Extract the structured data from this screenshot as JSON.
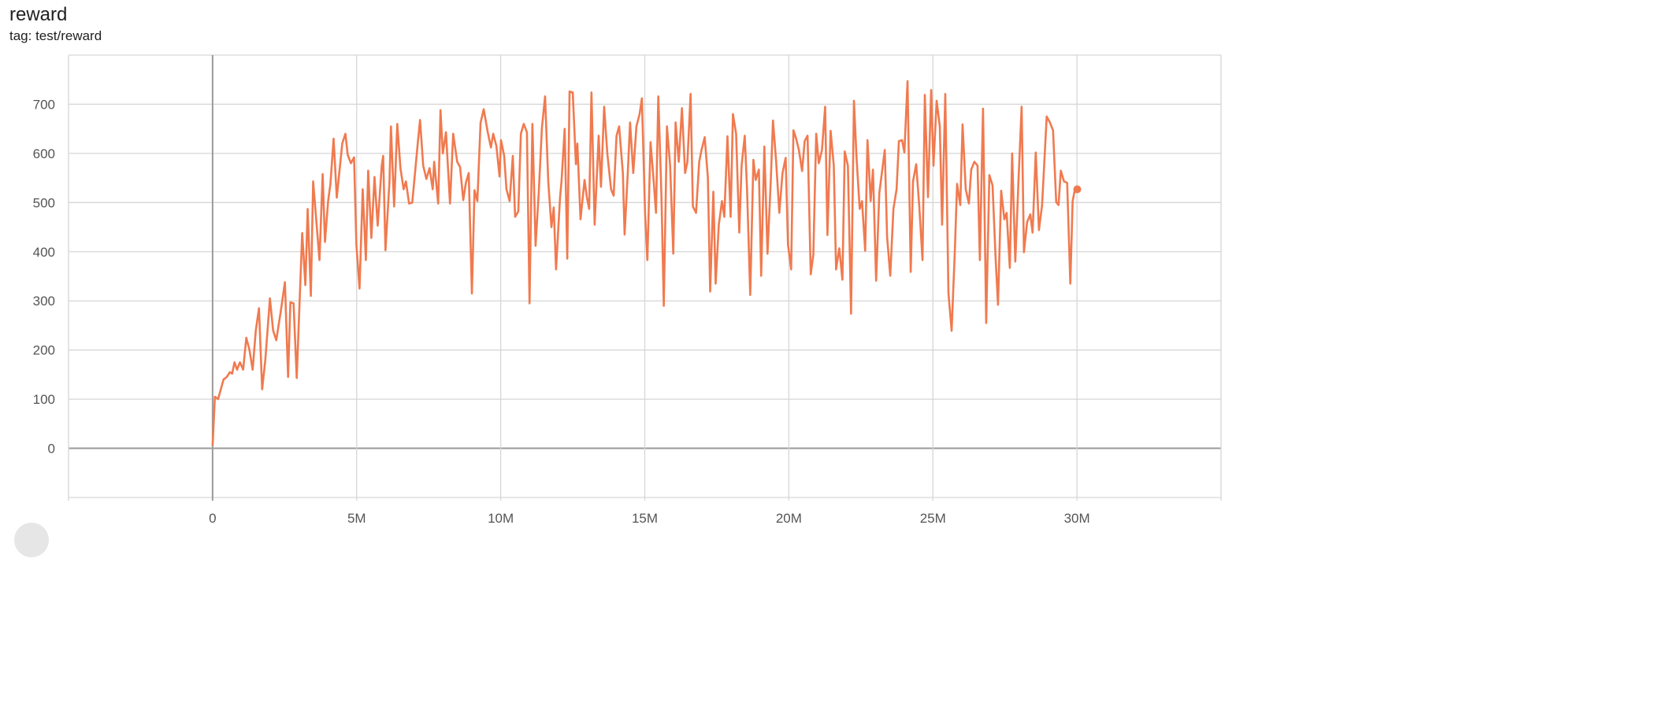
{
  "card": {
    "title": "reward",
    "subtitle": "tag: test/reward"
  },
  "chart_data": {
    "type": "line",
    "title": "reward",
    "subtitle": "tag: test/reward",
    "xlabel": "",
    "ylabel": "",
    "xlim": [
      -5000000,
      35000000
    ],
    "ylim": [
      -100,
      800
    ],
    "grid": true,
    "x_ticks": [
      {
        "value": 0,
        "label": "0"
      },
      {
        "value": 5000000,
        "label": "5M"
      },
      {
        "value": 10000000,
        "label": "10M"
      },
      {
        "value": 15000000,
        "label": "15M"
      },
      {
        "value": 20000000,
        "label": "20M"
      },
      {
        "value": 25000000,
        "label": "25M"
      },
      {
        "value": 30000000,
        "label": "30M"
      }
    ],
    "y_ticks": [
      {
        "value": 0,
        "label": "0"
      },
      {
        "value": 100,
        "label": "100"
      },
      {
        "value": 200,
        "label": "200"
      },
      {
        "value": 300,
        "label": "300"
      },
      {
        "value": 400,
        "label": "400"
      },
      {
        "value": 500,
        "label": "500"
      },
      {
        "value": 600,
        "label": "600"
      },
      {
        "value": 700,
        "label": "700"
      }
    ],
    "color": "#f07a4f",
    "x_unit_millions": [
      0,
      0.08,
      0.19,
      0.38,
      0.49,
      0.6,
      0.68,
      0.76,
      0.85,
      0.95,
      1.06,
      1.17,
      1.28,
      1.39,
      1.5,
      1.61,
      1.72,
      1.83,
      1.99,
      2.1,
      2.21,
      2.37,
      2.51,
      2.62,
      2.7,
      2.81,
      2.92,
      3.11,
      3.22,
      3.3,
      3.41,
      3.49,
      3.71,
      3.82,
      3.9,
      4.01,
      4.09,
      4.2,
      4.31,
      4.5,
      4.61,
      4.69,
      4.8,
      4.91,
      4.99,
      5.1,
      5.21,
      5.32,
      5.4,
      5.51,
      5.62,
      5.73,
      5.87,
      5.92,
      6.0,
      6.14,
      6.19,
      6.3,
      6.41,
      6.52,
      6.63,
      6.71,
      6.82,
      6.93,
      7.12,
      7.2,
      7.31,
      7.42,
      7.53,
      7.64,
      7.69,
      7.83,
      7.91,
      7.99,
      8.1,
      8.24,
      8.35,
      8.49,
      8.59,
      8.7,
      8.79,
      8.89,
      9.0,
      9.09,
      9.19,
      9.3,
      9.41,
      9.55,
      9.66,
      9.74,
      9.85,
      9.96,
      10.01,
      10.12,
      10.2,
      10.31,
      10.42,
      10.5,
      10.61,
      10.7,
      10.8,
      10.91,
      11.0,
      11.1,
      11.21,
      11.32,
      11.43,
      11.54,
      11.65,
      11.76,
      11.84,
      11.92,
      12.06,
      12.11,
      12.22,
      12.31,
      12.39,
      12.5,
      12.61,
      12.66,
      12.77,
      12.91,
      12.99,
      13.07,
      13.15,
      13.26,
      13.4,
      13.48,
      13.59,
      13.7,
      13.83,
      13.92,
      14.02,
      14.11,
      14.24,
      14.3,
      14.41,
      14.49,
      14.6,
      14.71,
      14.82,
      14.9,
      15.01,
      15.09,
      15.2,
      15.31,
      15.39,
      15.47,
      15.58,
      15.66,
      15.77,
      15.88,
      15.99,
      16.07,
      16.18,
      16.29,
      16.4,
      16.48,
      16.59,
      16.67,
      16.78,
      16.89,
      16.97,
      17.08,
      17.19,
      17.27,
      17.38,
      17.46,
      17.57,
      17.68,
      17.76,
      17.87,
      17.98,
      18.06,
      18.17,
      18.28,
      18.36,
      18.47,
      18.55,
      18.66,
      18.77,
      18.85,
      18.96,
      19.04,
      19.15,
      19.26,
      19.37,
      19.45,
      19.56,
      19.67,
      19.78,
      19.89,
      19.97,
      20.08,
      20.16,
      20.25,
      20.35,
      20.46,
      20.55,
      20.65,
      20.76,
      20.85,
      20.95,
      21.04,
      21.15,
      21.26,
      21.34,
      21.45,
      21.56,
      21.64,
      21.75,
      21.86,
      21.94,
      22.05,
      22.16,
      22.26,
      22.35,
      22.46,
      22.54,
      22.65,
      22.73,
      22.84,
      22.92,
      23.03,
      23.14,
      23.22,
      23.33,
      23.41,
      23.52,
      23.63,
      23.74,
      23.82,
      23.93,
      24.01,
      24.12,
      24.23,
      24.31,
      24.42,
      24.53,
      24.64,
      24.72,
      24.83,
      24.94,
      25.02,
      25.13,
      25.24,
      25.32,
      25.43,
      25.54,
      25.65,
      25.76,
      25.84,
      25.95,
      26.03,
      26.14,
      26.25,
      26.33,
      26.44,
      26.55,
      26.63,
      26.74,
      26.85,
      26.96,
      27.07,
      27.18,
      27.26,
      27.37,
      27.48,
      27.56,
      27.67,
      27.75,
      27.86,
      27.97,
      28.08,
      28.16,
      28.27,
      28.38,
      28.46,
      28.57,
      28.68,
      28.79,
      28.95,
      29.06,
      29.17,
      29.28,
      29.36,
      29.44,
      29.55,
      29.66,
      29.77,
      29.85,
      29.93,
      30.01
    ],
    "y": [
      5,
      105,
      100,
      140,
      145,
      155,
      152,
      175,
      160,
      175,
      160,
      225,
      200,
      160,
      240,
      285,
      120,
      180,
      305,
      240,
      220,
      280,
      338,
      145,
      297,
      295,
      143,
      438,
      332,
      487,
      310,
      543,
      383,
      558,
      420,
      503,
      538,
      630,
      510,
      620,
      640,
      597,
      580,
      592,
      415,
      325,
      527,
      383,
      565,
      428,
      552,
      453,
      575,
      595,
      403,
      543,
      655,
      492,
      660,
      570,
      527,
      543,
      498,
      500,
      620,
      668,
      575,
      548,
      570,
      527,
      583,
      498,
      688,
      600,
      643,
      498,
      640,
      583,
      572,
      505,
      540,
      560,
      315,
      525,
      503,
      662,
      690,
      643,
      612,
      640,
      615,
      553,
      627,
      595,
      527,
      503,
      595,
      471,
      482,
      640,
      660,
      643,
      295,
      660,
      412,
      520,
      652,
      716,
      543,
      450,
      490,
      364,
      511,
      543,
      650,
      386,
      726,
      724,
      578,
      620,
      466,
      546,
      511,
      487,
      724,
      455,
      636,
      532,
      695,
      600,
      527,
      514,
      636,
      655,
      560,
      435,
      560,
      663,
      560,
      655,
      680,
      712,
      479,
      383,
      623,
      543,
      479,
      716,
      511,
      290,
      655,
      575,
      396,
      663,
      583,
      692,
      560,
      583,
      721,
      492,
      479,
      583,
      607,
      633,
      551,
      319,
      522,
      335,
      455,
      503,
      471,
      635,
      471,
      680,
      640,
      439,
      575,
      636,
      527,
      312,
      587,
      546,
      567,
      351,
      614,
      396,
      540,
      667,
      583,
      479,
      560,
      591,
      415,
      364,
      647,
      631,
      607,
      564,
      625,
      636,
      354,
      394,
      640,
      580,
      607,
      695,
      434,
      646,
      575,
      364,
      407,
      343,
      604,
      575,
      274,
      707,
      591,
      487,
      503,
      402,
      627,
      503,
      567,
      341,
      519,
      556,
      607,
      431,
      351,
      487,
      527,
      625,
      627,
      602,
      747,
      359,
      543,
      578,
      490,
      383,
      719,
      511,
      729,
      575,
      707,
      655,
      455,
      721,
      316,
      239,
      399,
      538,
      495,
      659,
      527,
      498,
      567,
      583,
      575,
      383,
      691,
      255,
      556,
      535,
      383,
      292,
      524,
      466,
      479,
      367,
      600,
      380,
      543,
      695,
      399,
      460,
      476,
      439,
      602,
      444,
      495,
      675,
      663,
      647,
      501,
      495,
      565,
      543,
      540,
      335,
      503,
      527,
      527
    ]
  }
}
